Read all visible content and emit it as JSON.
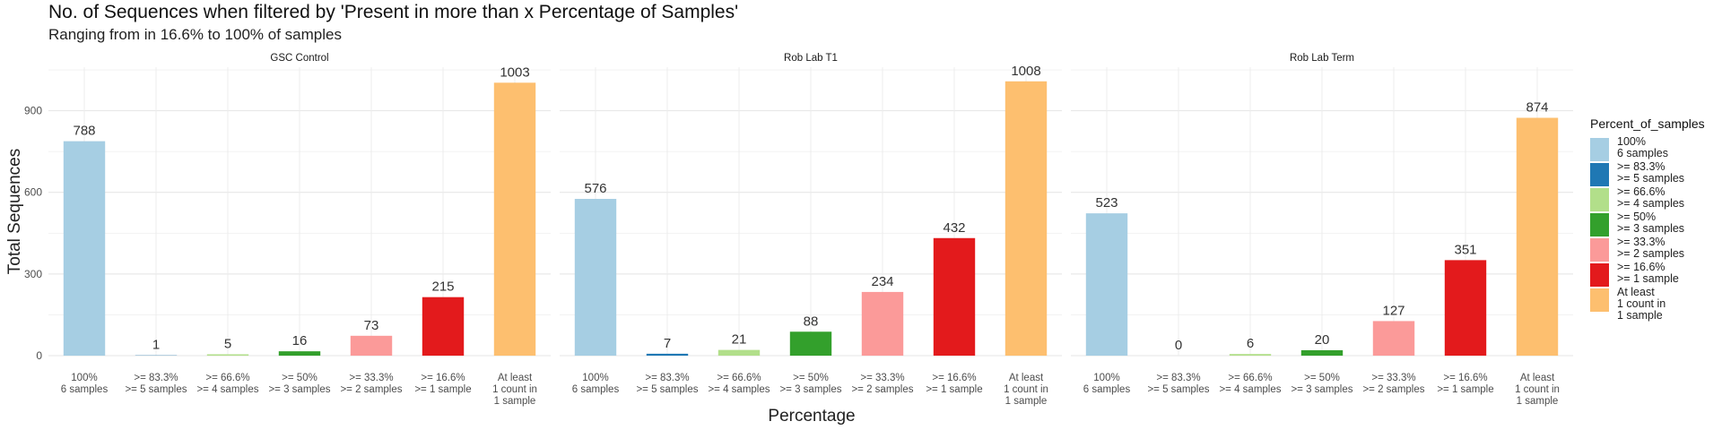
{
  "chart_data": {
    "type": "bar",
    "title": "No. of Sequences when filtered by 'Present in more than x Percentage of Samples'",
    "subtitle": "Ranging from in 16.6% to 100% of samples",
    "xlabel": "Percentage",
    "ylabel": "Total Sequences",
    "ylim": [
      0,
      1060
    ],
    "yticks": [
      "0",
      "300",
      "600",
      "900"
    ],
    "ytick_values": [
      0,
      300,
      600,
      900
    ],
    "grid": true,
    "legend_title": "Percent_of_samples",
    "legend_placement": "right",
    "categories": [
      "100%\n6 samples",
      ">= 83.3%\n>= 5 samples",
      ">= 66.6%\n>= 4 samples",
      ">= 50%\n>= 3 samples",
      ">= 33.3%\n>= 2 samples",
      ">= 16.6%\n>= 1 sample",
      "At least\n1 count in\n1 sample"
    ],
    "colors": [
      "#a6cee3",
      "#1f78b4",
      "#b2df8a",
      "#33a02c",
      "#fb9a99",
      "#e31a1c",
      "#fdbf6f"
    ],
    "facets": [
      {
        "name": "GSC Control",
        "values": [
          788,
          1,
          5,
          16,
          73,
          215,
          1003
        ]
      },
      {
        "name": "Rob Lab T1",
        "values": [
          576,
          7,
          21,
          88,
          234,
          432,
          1008
        ]
      },
      {
        "name": "Rob Lab Term",
        "values": [
          523,
          0,
          6,
          20,
          127,
          351,
          874
        ]
      }
    ]
  }
}
